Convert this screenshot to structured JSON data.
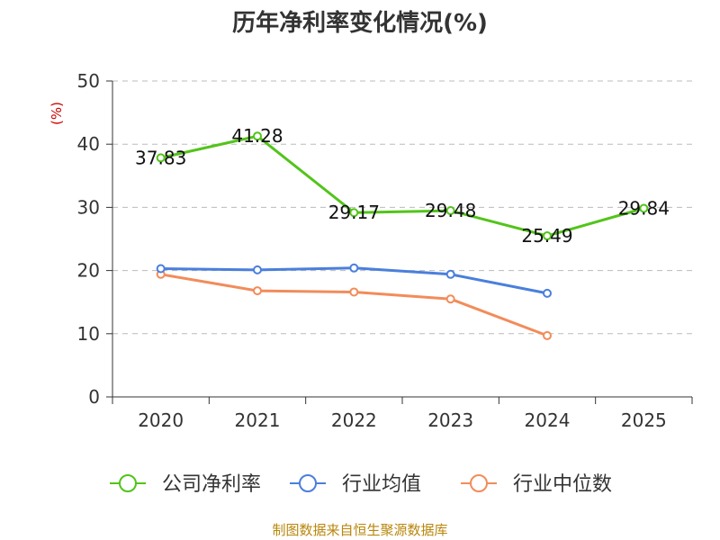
{
  "chart_data": {
    "type": "line",
    "title": "历年净利率变化情况(%)",
    "ylabel": "(%)",
    "categories": [
      "2020",
      "2021",
      "2022",
      "2023",
      "2024",
      "2025"
    ],
    "ylim": [
      0,
      50
    ],
    "yticks": [
      0,
      10,
      20,
      30,
      40,
      50
    ],
    "grid": true,
    "legend_position": "bottom",
    "series": [
      {
        "name": "公司净利率",
        "color": "#52c41a",
        "values": [
          37.83,
          41.28,
          29.17,
          29.48,
          25.49,
          29.84
        ],
        "labels": [
          "37.83",
          "41.28",
          "29.17",
          "29.48",
          "25.49",
          "29.84"
        ]
      },
      {
        "name": "行业均值",
        "color": "#4a7fdc",
        "values": [
          20.3,
          20.1,
          20.4,
          19.4,
          16.4,
          null
        ]
      },
      {
        "name": "行业中位数",
        "color": "#f28c5a",
        "values": [
          19.4,
          16.8,
          16.6,
          15.5,
          9.7,
          null
        ]
      }
    ]
  },
  "source_note": "制图数据来自恒生聚源数据库"
}
